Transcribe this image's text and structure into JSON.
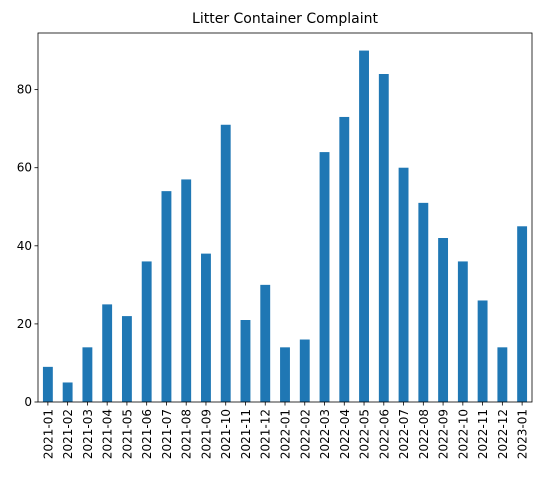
{
  "chart_data": {
    "type": "bar",
    "title": "Litter Container Complaint",
    "xlabel": "",
    "ylabel": "",
    "categories": [
      "2021-01",
      "2021-02",
      "2021-03",
      "2021-04",
      "2021-05",
      "2021-06",
      "2021-07",
      "2021-08",
      "2021-09",
      "2021-10",
      "2021-11",
      "2021-12",
      "2022-01",
      "2022-02",
      "2022-03",
      "2022-04",
      "2022-05",
      "2022-06",
      "2022-07",
      "2022-08",
      "2022-09",
      "2022-10",
      "2022-11",
      "2022-12",
      "2023-01"
    ],
    "values": [
      9,
      5,
      14,
      25,
      22,
      36,
      54,
      57,
      38,
      71,
      21,
      30,
      14,
      16,
      64,
      73,
      90,
      84,
      60,
      51,
      42,
      36,
      26,
      14,
      45
    ],
    "ylim": [
      0,
      94.5
    ],
    "yticks": [
      0,
      20,
      40,
      60,
      80
    ],
    "bar_color": "#1f77b4",
    "grid": false,
    "legend": false
  }
}
